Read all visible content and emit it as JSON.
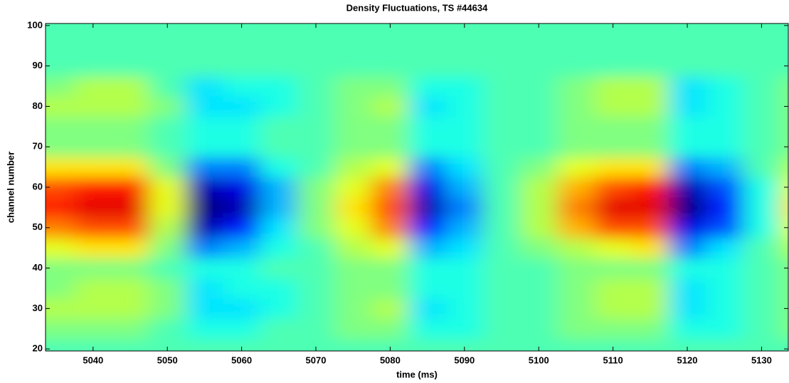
{
  "chart_data": {
    "type": "heatmap",
    "title": "Density Fluctuations, TS #44634",
    "x_label": "time (ms)",
    "y_label": "channel number",
    "colormap": "jet",
    "clim": [
      -1,
      1
    ],
    "x": [
      5035,
      5040,
      5045,
      5050,
      5055,
      5060,
      5065,
      5070,
      5075,
      5080,
      5085,
      5090,
      5095,
      5100,
      5105,
      5110,
      5115,
      5120,
      5125,
      5130,
      5135
    ],
    "y": [
      20,
      25,
      30,
      35,
      40,
      45,
      50,
      55,
      60,
      65,
      70,
      75,
      80,
      85,
      90,
      95,
      100
    ],
    "z": [
      [
        -0.1,
        0.0,
        0.1,
        0.0,
        0.0,
        0.2,
        0.5,
        0.7,
        0.6,
        0.3,
        0.0,
        0.0,
        0.1,
        0.0,
        -0.1,
        -0.1,
        -0.1
      ],
      [
        -0.1,
        0.0,
        0.1,
        0.1,
        0.0,
        0.3,
        0.6,
        0.8,
        0.7,
        0.3,
        0.0,
        0.0,
        0.1,
        0.1,
        -0.1,
        -0.1,
        -0.1
      ],
      [
        -0.1,
        0.0,
        0.1,
        0.1,
        0.0,
        0.3,
        0.6,
        0.8,
        0.7,
        0.3,
        0.0,
        0.0,
        0.1,
        0.1,
        -0.1,
        -0.1,
        -0.1
      ],
      [
        -0.1,
        -0.1,
        0.0,
        0.0,
        -0.1,
        0.0,
        0.1,
        0.2,
        0.2,
        0.0,
        -0.1,
        -0.1,
        0.0,
        -0.1,
        -0.1,
        -0.1,
        -0.1
      ],
      [
        -0.1,
        -0.2,
        -0.3,
        -0.3,
        -0.2,
        -0.5,
        -0.9,
        -1.0,
        -0.9,
        -0.5,
        -0.2,
        -0.2,
        -0.3,
        -0.3,
        -0.1,
        -0.1,
        -0.1
      ],
      [
        -0.1,
        -0.2,
        -0.3,
        -0.2,
        -0.2,
        -0.4,
        -0.7,
        -0.9,
        -0.8,
        -0.5,
        -0.2,
        -0.2,
        -0.3,
        -0.2,
        -0.1,
        -0.1,
        -0.1
      ],
      [
        -0.1,
        -0.1,
        -0.2,
        -0.2,
        -0.1,
        -0.2,
        -0.3,
        -0.4,
        -0.4,
        -0.2,
        -0.1,
        -0.1,
        -0.2,
        -0.2,
        -0.1,
        -0.1,
        -0.1
      ],
      [
        -0.1,
        -0.1,
        -0.1,
        -0.1,
        -0.1,
        -0.1,
        0.0,
        0.0,
        0.0,
        -0.1,
        -0.1,
        -0.1,
        -0.1,
        -0.1,
        -0.1,
        -0.1,
        -0.1
      ],
      [
        -0.1,
        0.0,
        0.0,
        0.0,
        0.0,
        0.1,
        0.2,
        0.3,
        0.2,
        0.1,
        0.0,
        0.0,
        0.0,
        0.0,
        -0.1,
        -0.1,
        -0.1
      ],
      [
        -0.1,
        0.0,
        0.1,
        0.0,
        0.0,
        0.2,
        0.5,
        0.6,
        0.5,
        0.2,
        0.0,
        0.0,
        0.1,
        0.0,
        -0.1,
        -0.1,
        -0.1
      ],
      [
        -0.1,
        -0.2,
        -0.3,
        -0.2,
        -0.2,
        -0.4,
        -0.7,
        -0.9,
        -0.8,
        -0.5,
        -0.2,
        -0.2,
        -0.3,
        -0.2,
        -0.1,
        -0.1,
        -0.1
      ],
      [
        -0.1,
        -0.2,
        -0.2,
        -0.2,
        -0.2,
        -0.3,
        -0.4,
        -0.5,
        -0.4,
        -0.3,
        -0.2,
        -0.2,
        -0.2,
        -0.2,
        -0.1,
        -0.1,
        -0.1
      ],
      [
        -0.1,
        -0.1,
        -0.1,
        -0.1,
        -0.1,
        -0.1,
        -0.1,
        -0.1,
        -0.1,
        -0.1,
        -0.1,
        -0.1,
        -0.1,
        -0.1,
        -0.1,
        -0.1,
        -0.1
      ],
      [
        -0.1,
        -0.1,
        -0.1,
        -0.1,
        -0.1,
        0.0,
        0.1,
        0.1,
        0.1,
        0.0,
        -0.1,
        -0.1,
        -0.1,
        -0.1,
        -0.1,
        -0.1,
        -0.1
      ],
      [
        -0.1,
        0.0,
        0.0,
        0.0,
        0.0,
        0.1,
        0.4,
        0.5,
        0.4,
        0.2,
        0.0,
        0.0,
        0.0,
        0.0,
        -0.1,
        -0.1,
        -0.1
      ],
      [
        -0.1,
        0.0,
        0.1,
        0.1,
        0.0,
        0.2,
        0.6,
        0.8,
        0.6,
        0.3,
        0.0,
        0.0,
        0.1,
        0.1,
        -0.1,
        -0.1,
        -0.1
      ],
      [
        -0.1,
        0.0,
        0.1,
        0.1,
        0.0,
        0.3,
        0.6,
        0.8,
        0.7,
        0.3,
        0.0,
        0.0,
        0.1,
        0.1,
        -0.1,
        -0.1,
        -0.1
      ],
      [
        -0.1,
        -0.2,
        -0.3,
        -0.3,
        -0.2,
        -0.5,
        -0.8,
        -1.0,
        -0.9,
        -0.5,
        -0.2,
        -0.2,
        -0.3,
        -0.3,
        -0.1,
        -0.1,
        -0.1
      ],
      [
        -0.1,
        -0.2,
        -0.2,
        -0.2,
        -0.2,
        -0.3,
        -0.6,
        -0.7,
        -0.6,
        -0.4,
        -0.2,
        -0.2,
        -0.2,
        -0.2,
        -0.1,
        -0.1,
        -0.1
      ],
      [
        -0.1,
        -0.1,
        -0.1,
        -0.1,
        -0.1,
        -0.1,
        -0.2,
        -0.2,
        -0.2,
        -0.1,
        -0.1,
        -0.1,
        -0.1,
        -0.1,
        -0.1,
        -0.1,
        -0.1
      ],
      [
        -0.1,
        0.0,
        0.0,
        0.0,
        0.0,
        0.1,
        0.2,
        0.3,
        0.2,
        0.1,
        0.0,
        0.0,
        0.0,
        0.0,
        -0.1,
        -0.1,
        -0.1
      ]
    ],
    "xlim": [
      5033.6,
      5133.6
    ],
    "xticks": [
      5040,
      5050,
      5060,
      5070,
      5080,
      5090,
      5100,
      5110,
      5120,
      5130
    ],
    "ylim": [
      19.5,
      100.5
    ],
    "yticks": [
      20,
      30,
      40,
      50,
      60,
      70,
      80,
      90,
      100
    ]
  }
}
